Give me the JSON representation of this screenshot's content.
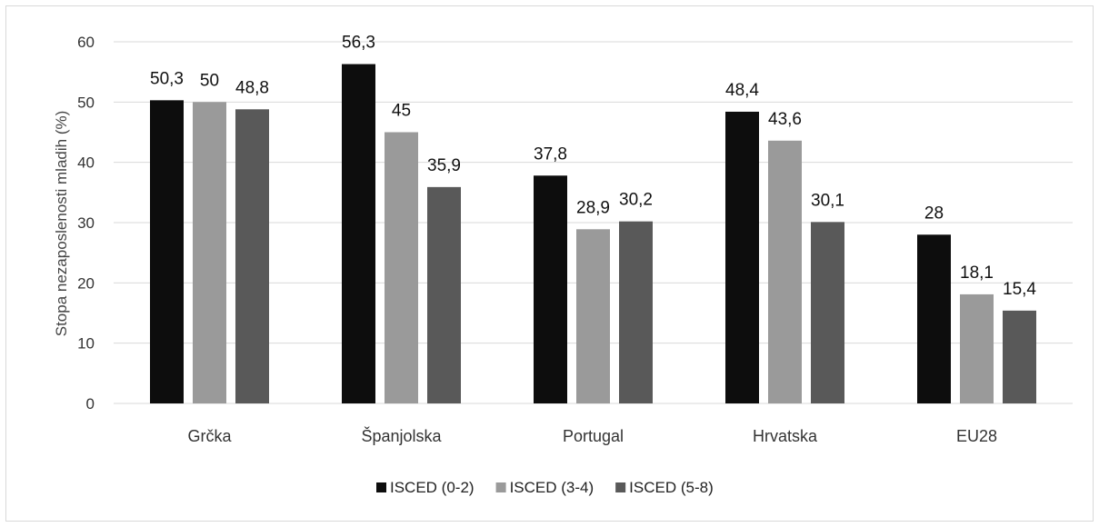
{
  "chart_data": {
    "type": "bar",
    "ylabel": "Stopa nezaposlenosti mladih (%)",
    "xlabel": "",
    "ylim": [
      0,
      60
    ],
    "yticks": [
      0,
      10,
      20,
      30,
      40,
      50,
      60
    ],
    "grid": true,
    "legend_position": "bottom",
    "categories": [
      "Grčka",
      "Španjolska",
      "Portugal",
      "Hrvatska",
      "EU28"
    ],
    "series": [
      {
        "name": "ISCED (0-2)",
        "color": "#0d0d0d",
        "values": [
          50.3,
          56.3,
          37.8,
          48.4,
          28
        ]
      },
      {
        "name": "ISCED (3-4)",
        "color": "#9a9a9a",
        "values": [
          50,
          45,
          28.9,
          43.6,
          18.1
        ]
      },
      {
        "name": "ISCED (5-8)",
        "color": "#595959",
        "values": [
          48.8,
          35.9,
          30.2,
          30.1,
          15.4
        ]
      }
    ],
    "data_labels": [
      [
        "50,3",
        "56,3",
        "37,8",
        "48,4",
        "28"
      ],
      [
        "50",
        "45",
        "28,9",
        "43,6",
        "18,1"
      ],
      [
        "48,8",
        "35,9",
        "30,2",
        "30,1",
        "15,4"
      ]
    ]
  }
}
